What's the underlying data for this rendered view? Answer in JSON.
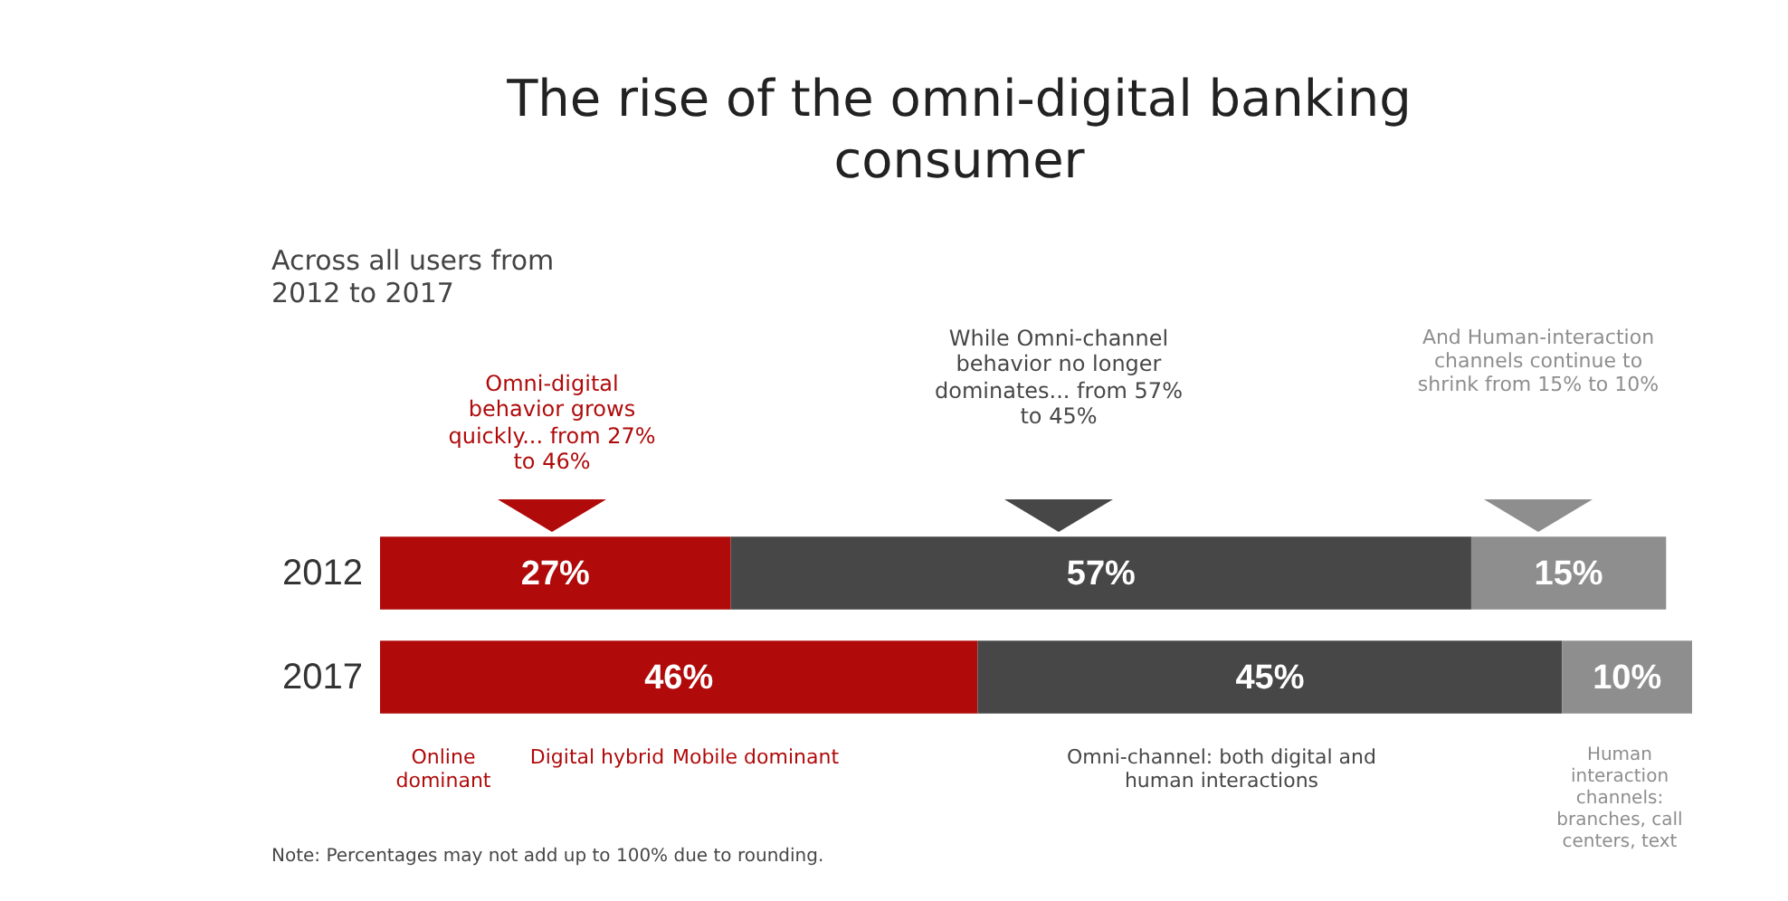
{
  "chart_data": {
    "type": "bar",
    "orientation": "horizontal",
    "stacked": true,
    "title": "The rise of the omni-digital banking consumer",
    "subtitle": "Across all users from 2012 to 2017",
    "categories": [
      "2012",
      "2017"
    ],
    "series": [
      {
        "color": "#b00a0a",
        "values": [
          27,
          46
        ],
        "value_labels": [
          "27%",
          "46%"
        ]
      },
      {
        "color": "#474747",
        "values": [
          57,
          45
        ],
        "value_labels": [
          "57%",
          "45%"
        ]
      },
      {
        "color": "#8e8e8e",
        "values": [
          15,
          10
        ],
        "value_labels": [
          "15%",
          "10%"
        ]
      }
    ],
    "annotations": [
      "Omni-digital behavior grows quickly... from 27% to 46%",
      "While Omni-channel behavior no longer dominates... from 57% to 45%",
      "And Human-interaction channels continue to shrink from 15% to 10%",
      "Online dominant",
      "Digital hybrid",
      "Mobile dominant",
      "Omni-channel: both digital and human interactions",
      "Human interaction channels: branches, call centers, text",
      "Note: Percentages may not add up to 100% due to rounding."
    ]
  }
}
